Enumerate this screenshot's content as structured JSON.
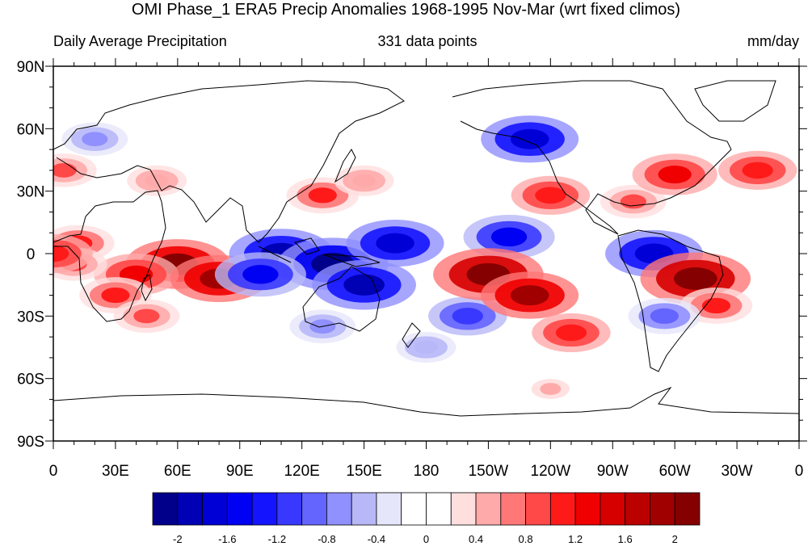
{
  "title": "OMI Phase_1 ERA5 Precip Anomalies 1968-1995 Nov-Mar (wrt fixed climos)",
  "left_string": "Daily Average Precipitation",
  "center_string": "331 data points",
  "right_string": "mm/day",
  "lat_ticks": [
    "90N",
    "60N",
    "30N",
    "0",
    "30S",
    "60S",
    "90S"
  ],
  "lon_ticks": [
    "0",
    "30E",
    "60E",
    "90E",
    "120E",
    "150E",
    "180",
    "150W",
    "120W",
    "90W",
    "60W",
    "30W",
    "0"
  ],
  "colorbar": {
    "colors": [
      "#00008a",
      "#0000b4",
      "#0000d6",
      "#0000f2",
      "#1414ff",
      "#3838ff",
      "#6464ff",
      "#9090ff",
      "#b8b8f8",
      "#e6e6fa",
      "#ffffff",
      "#ffffff",
      "#ffdede",
      "#ffaaaa",
      "#ff7777",
      "#ff4848",
      "#ff1a1a",
      "#f00000",
      "#d60000",
      "#bb0000",
      "#a00000",
      "#850000"
    ],
    "labels": [
      "-2",
      "-1.6",
      "-1.2",
      "-0.8",
      "-0.4",
      "0",
      "0.4",
      "0.8",
      "1.2",
      "1.6",
      "2"
    ]
  },
  "anomalies": [
    {
      "lon": 60,
      "lat": -5,
      "value": 2.0
    },
    {
      "lon": 40,
      "lat": -10,
      "value": 1.4
    },
    {
      "lon": 80,
      "lat": -12,
      "value": 1.8
    },
    {
      "lon": 30,
      "lat": -20,
      "value": 1.0
    },
    {
      "lon": 12,
      "lat": 5,
      "value": 1.0
    },
    {
      "lon": 45,
      "lat": -30,
      "value": 0.8
    },
    {
      "lon": 110,
      "lat": 0,
      "value": -2.0
    },
    {
      "lon": 135,
      "lat": -5,
      "value": -2.2
    },
    {
      "lon": 150,
      "lat": -15,
      "value": -2.0
    },
    {
      "lon": 165,
      "lat": 5,
      "value": -1.8
    },
    {
      "lon": 220,
      "lat": 8,
      "value": -1.6
    },
    {
      "lon": 100,
      "lat": -10,
      "value": -1.6
    },
    {
      "lon": 200,
      "lat": -30,
      "value": -1.2
    },
    {
      "lon": 130,
      "lat": -35,
      "value": -0.8
    },
    {
      "lon": 210,
      "lat": -10,
      "value": 2.2
    },
    {
      "lon": 230,
      "lat": -20,
      "value": 1.8
    },
    {
      "lon": 250,
      "lat": -38,
      "value": 1.2
    },
    {
      "lon": 130,
      "lat": 28,
      "value": 1.0
    },
    {
      "lon": 150,
      "lat": 35,
      "value": 0.6
    },
    {
      "lon": 230,
      "lat": 55,
      "value": -1.8
    },
    {
      "lon": 240,
      "lat": 28,
      "value": 1.2
    },
    {
      "lon": 280,
      "lat": 25,
      "value": 0.8
    },
    {
      "lon": 300,
      "lat": 38,
      "value": 1.4
    },
    {
      "lon": 340,
      "lat": 40,
      "value": 1.2
    },
    {
      "lon": 290,
      "lat": 0,
      "value": -1.8
    },
    {
      "lon": 310,
      "lat": -12,
      "value": 2.2
    },
    {
      "lon": 320,
      "lat": -25,
      "value": 1.0
    },
    {
      "lon": 295,
      "lat": -30,
      "value": -1.0
    },
    {
      "lon": 20,
      "lat": 55,
      "value": -0.8
    },
    {
      "lon": 5,
      "lat": 40,
      "value": 0.8
    },
    {
      "lon": 10,
      "lat": -5,
      "value": 0.8
    },
    {
      "lon": 50,
      "lat": 35,
      "value": 0.6
    },
    {
      "lon": 180,
      "lat": -45,
      "value": -0.6
    },
    {
      "lon": 240,
      "lat": -65,
      "value": 0.4
    },
    {
      "lon": 0,
      "lat": 0,
      "value": 1.2
    }
  ]
}
